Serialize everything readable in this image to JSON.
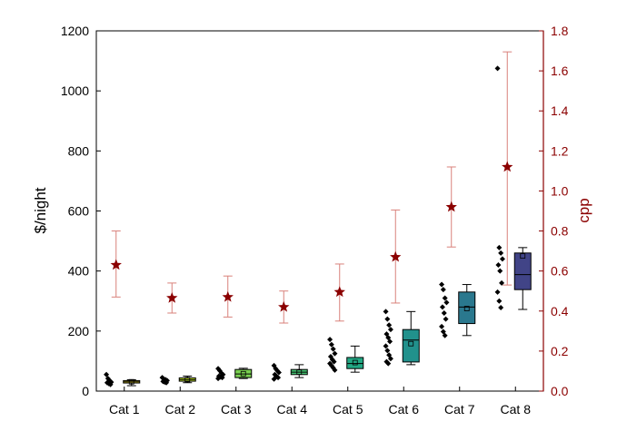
{
  "chart_data": {
    "type": "box",
    "categories": [
      "Cat 1",
      "Cat 2",
      "Cat 3",
      "Cat 4",
      "Cat 5",
      "Cat 6",
      "Cat 7",
      "Cat 8"
    ],
    "left_axis": {
      "label": "$/night",
      "ylim": [
        0,
        1200
      ],
      "ticks": [
        0,
        200,
        400,
        600,
        800,
        1000,
        1200
      ]
    },
    "right_axis": {
      "label": "cpp",
      "ylim": [
        0.0,
        1.8
      ],
      "ticks": [
        0.0,
        0.2,
        0.4,
        0.6,
        0.8,
        1.0,
        1.2,
        1.4,
        1.6,
        1.8
      ],
      "tick_labels": [
        "0.0",
        "0.2",
        "0.4",
        "0.6",
        "0.8",
        "1.0",
        "1.2",
        "1.4",
        "1.6",
        "1.8"
      ]
    },
    "boxes": [
      {
        "category": "Cat 1",
        "whisker_low": 18,
        "q1": 27,
        "median": 31,
        "q3": 35,
        "whisker_high": 38,
        "mean": 31
      },
      {
        "category": "Cat 2",
        "whisker_low": 28,
        "q1": 33,
        "median": 38,
        "q3": 44,
        "whisker_high": 50,
        "mean": 38
      },
      {
        "category": "Cat 3",
        "whisker_low": 42,
        "q1": 45,
        "median": 57,
        "q3": 72,
        "whisker_high": 76,
        "mean": 58
      },
      {
        "category": "Cat 4",
        "whisker_low": 45,
        "q1": 55,
        "median": 63,
        "q3": 72,
        "whisker_high": 88,
        "mean": 63
      },
      {
        "category": "Cat 5",
        "whisker_low": 63,
        "q1": 75,
        "median": 92,
        "q3": 112,
        "whisker_high": 150,
        "mean": 95
      },
      {
        "category": "Cat 6",
        "whisker_low": 88,
        "q1": 97,
        "median": 170,
        "q3": 205,
        "whisker_high": 265,
        "mean": 158
      },
      {
        "category": "Cat 7",
        "whisker_low": 185,
        "q1": 225,
        "median": 280,
        "q3": 330,
        "whisker_high": 355,
        "mean": 275
      },
      {
        "category": "Cat 8",
        "whisker_low": 272,
        "q1": 338,
        "median": 388,
        "q3": 460,
        "whisker_high": 478,
        "mean": 450
      }
    ],
    "raw_points": [
      [
        55,
        42,
        35,
        30,
        28,
        25,
        22
      ],
      [
        45,
        40,
        38,
        35,
        32,
        30,
        28
      ],
      [
        75,
        68,
        60,
        55,
        50,
        47,
        45,
        42
      ],
      [
        85,
        75,
        68,
        62,
        55,
        50,
        45,
        40
      ],
      [
        172,
        155,
        140,
        125,
        115,
        105,
        98,
        92,
        85,
        78,
        70
      ],
      [
        265,
        240,
        220,
        205,
        190,
        178,
        165,
        150,
        135,
        120,
        108,
        98,
        92
      ],
      [
        355,
        338,
        310,
        295,
        280,
        260,
        240,
        215,
        198,
        185
      ],
      [
        1075,
        478,
        460,
        440,
        420,
        400,
        360,
        330,
        300,
        278
      ]
    ],
    "cpp_series": [
      {
        "category": "Cat 1",
        "value": 0.63,
        "low": 0.47,
        "high": 0.8
      },
      {
        "category": "Cat 2",
        "value": 0.465,
        "low": 0.39,
        "high": 0.54
      },
      {
        "category": "Cat 3",
        "value": 0.47,
        "low": 0.37,
        "high": 0.575
      },
      {
        "category": "Cat 4",
        "value": 0.42,
        "low": 0.34,
        "high": 0.5
      },
      {
        "category": "Cat 5",
        "value": 0.495,
        "low": 0.35,
        "high": 0.635
      },
      {
        "category": "Cat 6",
        "value": 0.67,
        "low": 0.44,
        "high": 0.905
      },
      {
        "category": "Cat 7",
        "value": 0.92,
        "low": 0.72,
        "high": 1.12
      },
      {
        "category": "Cat 8",
        "value": 1.12,
        "low": 0.53,
        "high": 1.695
      }
    ],
    "box_colors": [
      "#fde725",
      "#bddf26",
      "#7ad151",
      "#44bf70",
      "#22a884",
      "#21918c",
      "#2a788e",
      "#414487"
    ],
    "cpp_color": "#8b0000",
    "errorbar_color": "#d9817a",
    "grid": false
  }
}
